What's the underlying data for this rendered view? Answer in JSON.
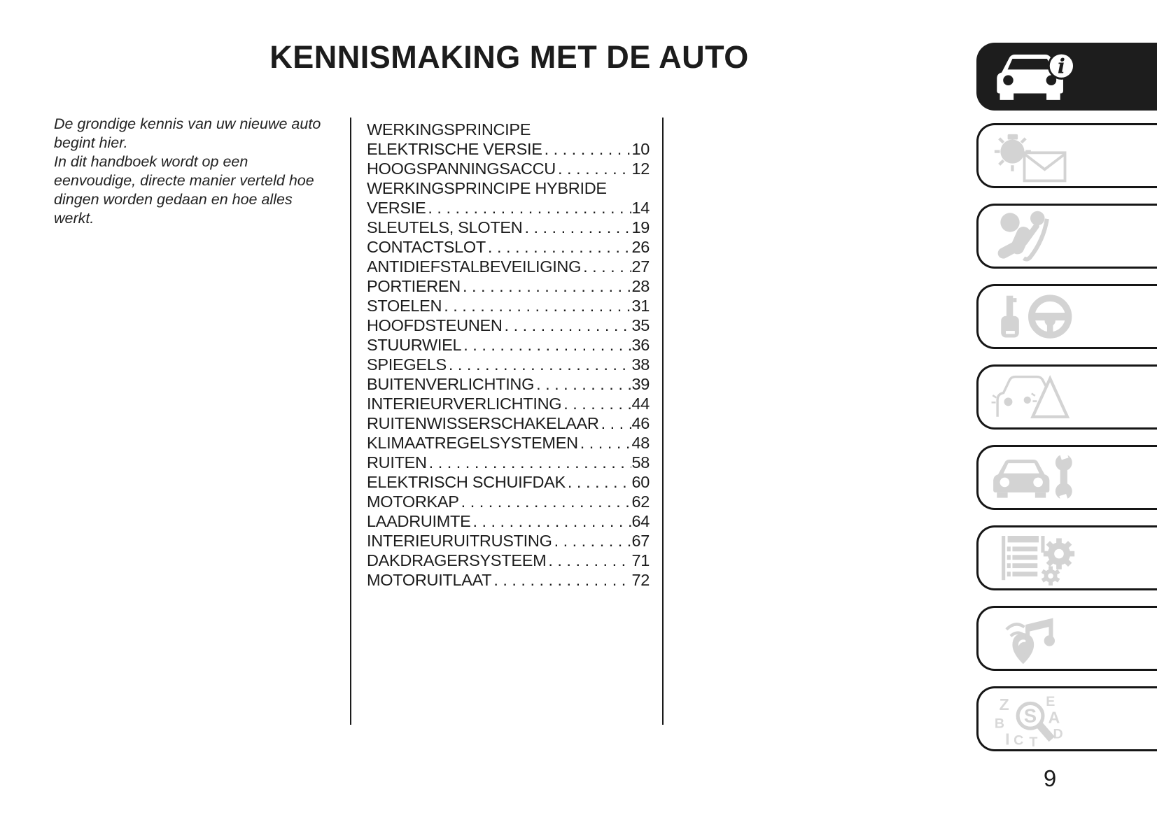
{
  "page": {
    "title": "KENNISMAKING MET DE AUTO",
    "number": "9"
  },
  "intro": {
    "lines": [
      "De grondige kennis van uw nieuwe auto",
      "begint hier.",
      "In dit handboek wordt op een",
      "eenvoudige, directe manier verteld hoe",
      "dingen worden gedaan en hoe alles",
      "werkt."
    ]
  },
  "toc": {
    "entries": [
      {
        "lines": [
          "WERKINGSPRINCIPE",
          "ELEKTRISCHE VERSIE"
        ],
        "page": "10"
      },
      {
        "lines": [
          "HOOGSPANNINGSACCU"
        ],
        "page": "12"
      },
      {
        "lines": [
          "WERKINGSPRINCIPE HYBRIDE",
          "VERSIE"
        ],
        "page": "14"
      },
      {
        "lines": [
          "SLEUTELS, SLOTEN"
        ],
        "page": "19"
      },
      {
        "lines": [
          "CONTACTSLOT"
        ],
        "page": "26"
      },
      {
        "lines": [
          "ANTIDIEFSTALBEVEILIGING"
        ],
        "page": "27"
      },
      {
        "lines": [
          "PORTIEREN"
        ],
        "page": "28"
      },
      {
        "lines": [
          "STOELEN"
        ],
        "page": "31"
      },
      {
        "lines": [
          "HOOFDSTEUNEN"
        ],
        "page": "35"
      },
      {
        "lines": [
          "STUURWIEL"
        ],
        "page": "36"
      },
      {
        "lines": [
          "SPIEGELS"
        ],
        "page": "38"
      },
      {
        "lines": [
          "BUITENVERLICHTING"
        ],
        "page": "39"
      },
      {
        "lines": [
          "INTERIEURVERLICHTING"
        ],
        "page": "44"
      },
      {
        "lines": [
          "RUITENWISSERSCHAKELAAR"
        ],
        "page": "46"
      },
      {
        "lines": [
          "KLIMAATREGELSYSTEMEN"
        ],
        "page": "48"
      },
      {
        "lines": [
          "RUITEN"
        ],
        "page": "58"
      },
      {
        "lines": [
          "ELEKTRISCH SCHUIFDAK"
        ],
        "page": "60"
      },
      {
        "lines": [
          "MOTORKAP"
        ],
        "page": "62"
      },
      {
        "lines": [
          "LAADRUIMTE"
        ],
        "page": "64"
      },
      {
        "lines": [
          "INTERIEURUITRUSTING"
        ],
        "page": "67"
      },
      {
        "lines": [
          "DAKDRAGERSYSTEEM"
        ],
        "page": "71"
      },
      {
        "lines": [
          "MOTORUITLAAT"
        ],
        "page": "72"
      }
    ]
  },
  "sidebar": {
    "tabs": [
      {
        "icon": "car-info-icon",
        "active": true
      },
      {
        "icon": "warning-light-message-icon",
        "active": false
      },
      {
        "icon": "airbag-seatbelt-icon",
        "active": false
      },
      {
        "icon": "key-steering-wheel-icon",
        "active": false
      },
      {
        "icon": "car-warning-triangle-icon",
        "active": false
      },
      {
        "icon": "car-wrench-icon",
        "active": false
      },
      {
        "icon": "spec-sheet-gears-icon",
        "active": false
      },
      {
        "icon": "multimedia-note-pin-icon",
        "active": false
      },
      {
        "icon": "alphabetical-index-search-icon",
        "active": false
      }
    ]
  },
  "colors": {
    "ink": "#1b1b1b",
    "icon_gray": "#d3d3d3",
    "active_tab_bg": "#1d1d1d"
  }
}
